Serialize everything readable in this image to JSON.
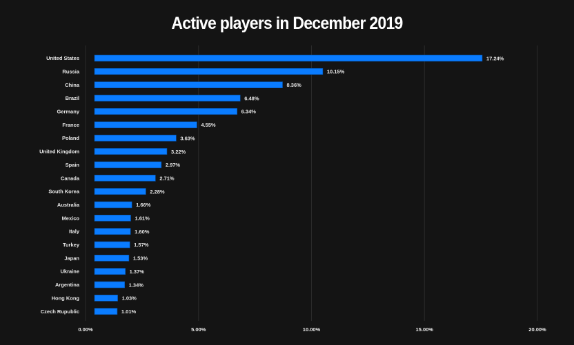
{
  "chart_data": {
    "type": "bar",
    "orientation": "horizontal",
    "title": "Active players in December 2019",
    "xlabel": "",
    "ylabel": "",
    "categories": [
      "United States",
      "Russia",
      "China",
      "Brazil",
      "Germany",
      "France",
      "Poland",
      "United Kingdom",
      "Spain",
      "Canada",
      "South Korea",
      "Australia",
      "Mexico",
      "Italy",
      "Turkey",
      "Japan",
      "Ukraine",
      "Argentina",
      "Hong Kong",
      "Czech Rupublic"
    ],
    "values": [
      17.24,
      10.15,
      8.36,
      6.48,
      6.34,
      4.55,
      3.63,
      3.22,
      2.97,
      2.71,
      2.28,
      1.66,
      1.61,
      1.6,
      1.57,
      1.53,
      1.37,
      1.34,
      1.03,
      1.01
    ],
    "value_labels": [
      "17.24%",
      "10.15%",
      "8.36%",
      "6.48%",
      "6.34%",
      "4.55%",
      "3.63%",
      "3.22%",
      "2.97%",
      "2.71%",
      "2.28%",
      "1.66%",
      "1.61%",
      "1.60%",
      "1.57%",
      "1.53%",
      "1.37%",
      "1.34%",
      "1.03%",
      "1.01%"
    ],
    "xlim": [
      0,
      20
    ],
    "x_ticks": [
      0,
      5,
      10,
      15,
      20
    ],
    "x_tick_labels": [
      "0.00%",
      "5.00%",
      "10.00%",
      "15.00%",
      "20.00%"
    ],
    "grid": "vertical",
    "legend": "none",
    "colors": {
      "bar": "#0a7cff",
      "background": "#141414",
      "text": "#ffffff",
      "grid": "#2a2a2a"
    }
  }
}
